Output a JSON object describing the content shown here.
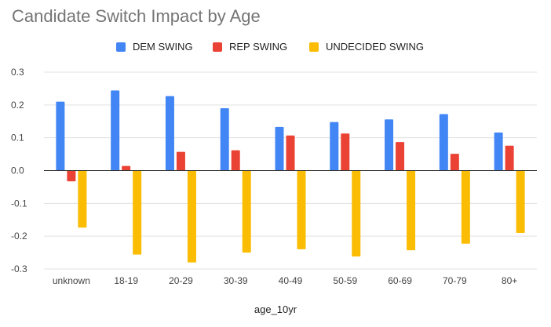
{
  "chart_data": {
    "type": "bar",
    "title": "Candidate Switch Impact by Age",
    "xlabel": "age_10yr",
    "ylabel": "",
    "ylim": [
      -0.3,
      0.3
    ],
    "yticks": [
      "0.3",
      "0.2",
      "0.1",
      "0.0",
      "-0.1",
      "-0.2",
      "-0.3"
    ],
    "ytick_values": [
      0.3,
      0.2,
      0.1,
      0.0,
      -0.1,
      -0.2,
      -0.3
    ],
    "grid": true,
    "legend_position": "top-center",
    "categories": [
      "unknown",
      "18-19",
      "20-29",
      "30-39",
      "40-49",
      "50-59",
      "60-69",
      "70-79",
      "80+"
    ],
    "series": [
      {
        "name": "DEM SWING",
        "color": "#4285f4",
        "values": [
          0.21,
          0.244,
          0.227,
          0.19,
          0.133,
          0.148,
          0.156,
          0.172,
          0.116
        ]
      },
      {
        "name": "REP SWING",
        "color": "#ea4335",
        "values": [
          -0.033,
          0.014,
          0.057,
          0.062,
          0.107,
          0.113,
          0.087,
          0.051,
          0.076
        ]
      },
      {
        "name": "UNDECIDED SWING",
        "color": "#fbbc04",
        "values": [
          -0.174,
          -0.256,
          -0.28,
          -0.25,
          -0.24,
          -0.262,
          -0.243,
          -0.223,
          -0.19
        ]
      }
    ]
  }
}
